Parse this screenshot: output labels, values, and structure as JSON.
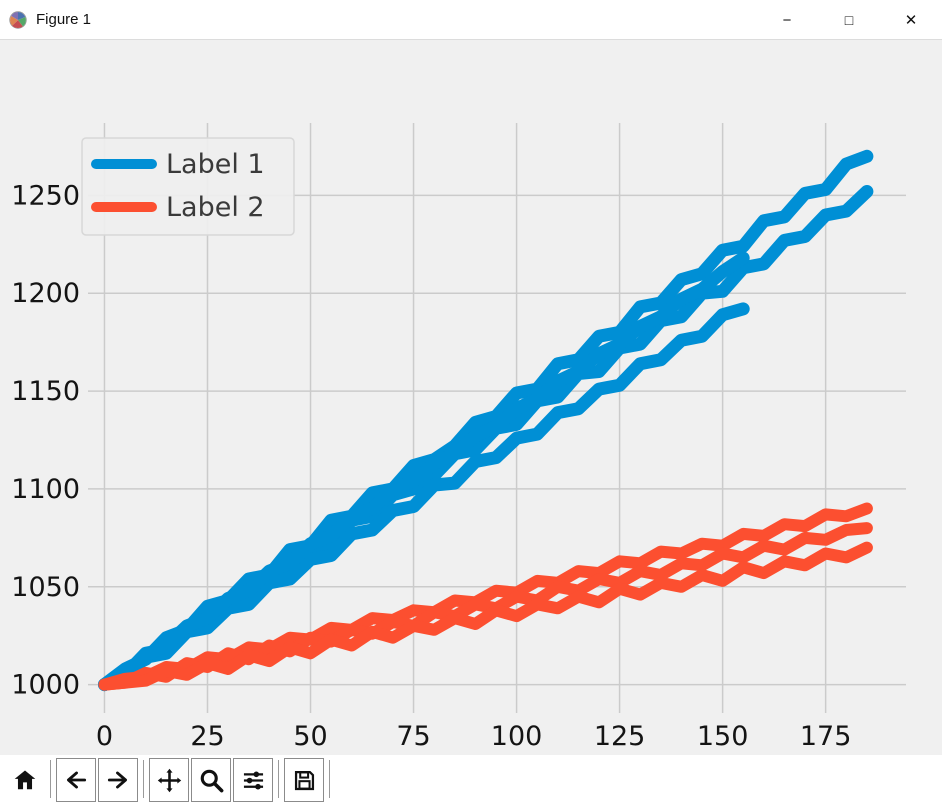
{
  "window": {
    "title": "Figure 1",
    "controls": {
      "minimize": "−",
      "maximize": "□",
      "close": "✕"
    }
  },
  "toolbar": {
    "icons": [
      "home-icon",
      "back-icon",
      "forward-icon",
      "pan-icon",
      "zoom-icon",
      "subplots-icon",
      "save-icon"
    ]
  },
  "chart_data": {
    "type": "line",
    "title": "",
    "xlabel": "",
    "ylabel": "",
    "grid": true,
    "background": "#f0f0f0",
    "grid_color": "#cbcbcb",
    "x_ticks": [
      0,
      25,
      50,
      75,
      100,
      125,
      150,
      175
    ],
    "y_ticks": [
      1000,
      1050,
      1100,
      1150,
      1200,
      1250
    ],
    "xlim": [
      -4,
      194.5
    ],
    "ylim": [
      985.5,
      1287
    ],
    "x_step": 5,
    "legend": {
      "position": "upper left",
      "entries": [
        {
          "label": "Label 1",
          "color": "#008fd5"
        },
        {
          "label": "Label 2",
          "color": "#fc4f30"
        }
      ]
    },
    "series": [
      {
        "name": "Label 1",
        "color": "#008fd5",
        "linewidth": 13,
        "runs": [
          [
            1000,
            1008,
            1013,
            1024,
            1028,
            1040,
            1043,
            1054,
            1056,
            1069,
            1071,
            1084,
            1086,
            1098,
            1100,
            1112,
            1115,
            1122,
            1134,
            1137,
            1149,
            1151,
            1164,
            1166,
            1178,
            1180,
            1193,
            1195,
            1207,
            1210,
            1222,
            1224,
            1237,
            1239,
            1251,
            1253,
            1266,
            1270
          ],
          [
            1000,
            1005,
            1016,
            1018,
            1029,
            1031,
            1043,
            1045,
            1057,
            1058,
            1070,
            1072,
            1084,
            1086,
            1097,
            1100,
            1107,
            1118,
            1120,
            1131,
            1133,
            1145,
            1147,
            1159,
            1160,
            1172,
            1174,
            1186,
            1188,
            1200,
            1201,
            1213,
            1215,
            1227,
            1229,
            1240,
            1242,
            1252
          ],
          [
            1000,
            1004,
            1014,
            1016,
            1027,
            1029,
            1039,
            1041,
            1052,
            1054,
            1064,
            1066,
            1077,
            1079,
            1089,
            1091,
            1102,
            1103,
            1114,
            1116,
            1126,
            1128,
            1139,
            1141,
            1151,
            1153,
            1164,
            1166,
            1176,
            1178,
            1189,
            1192
          ],
          [
            1000,
            1006,
            1015,
            1020,
            1030,
            1034,
            1044,
            1048,
            1058,
            1062,
            1072,
            1076,
            1086,
            1090,
            1100,
            1104,
            1113,
            1118,
            1127,
            1132,
            1141,
            1146,
            1155,
            1160,
            1169,
            1174,
            1183,
            1188,
            1197,
            1202,
            1211,
            1218
          ]
        ]
      },
      {
        "name": "Label 2",
        "color": "#fc4f30",
        "linewidth": 12,
        "runs": [
          [
            1000,
            1003,
            1004,
            1009,
            1008,
            1014,
            1013,
            1019,
            1018,
            1024,
            1023,
            1029,
            1028,
            1034,
            1033,
            1038,
            1037,
            1043,
            1042,
            1048,
            1047,
            1053,
            1052,
            1058,
            1057,
            1063,
            1062,
            1068,
            1067,
            1072,
            1071,
            1077,
            1076,
            1082,
            1081,
            1087,
            1086,
            1090
          ],
          [
            1000,
            1001,
            1006,
            1004,
            1011,
            1009,
            1016,
            1013,
            1020,
            1017,
            1024,
            1022,
            1028,
            1026,
            1032,
            1030,
            1037,
            1035,
            1041,
            1039,
            1045,
            1043,
            1050,
            1048,
            1054,
            1052,
            1058,
            1056,
            1062,
            1061,
            1067,
            1065,
            1071,
            1069,
            1075,
            1074,
            1079,
            1080
          ],
          [
            1000,
            1001,
            1002,
            1007,
            1005,
            1011,
            1008,
            1015,
            1012,
            1019,
            1016,
            1023,
            1020,
            1027,
            1024,
            1030,
            1028,
            1034,
            1031,
            1038,
            1035,
            1041,
            1039,
            1045,
            1042,
            1049,
            1046,
            1052,
            1050,
            1056,
            1053,
            1060,
            1057,
            1063,
            1061,
            1067,
            1065,
            1070
          ]
        ]
      }
    ]
  }
}
